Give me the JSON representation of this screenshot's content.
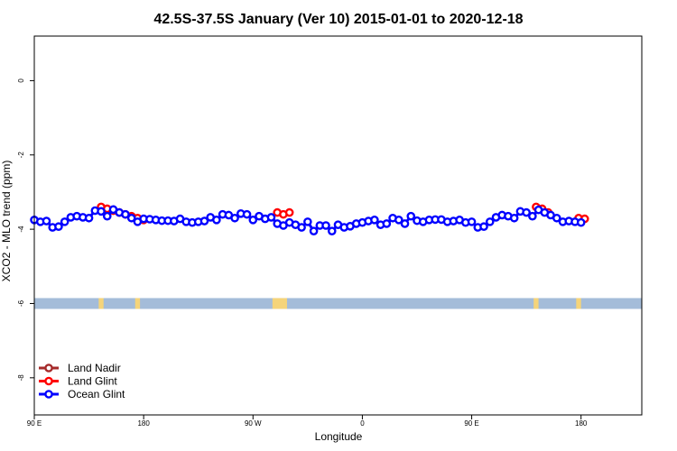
{
  "chart_data": {
    "type": "line",
    "title": "42.5S-37.5S January (Ver 10)   2015-01-01 to 2020-12-18",
    "xlabel": "Longitude",
    "ylabel": "XCO2 - MLO trend (ppm)",
    "xlim": [
      90,
      590
    ],
    "ylim": [
      -9,
      1.2
    ],
    "x_ticks": [
      {
        "value": 90,
        "label": "90 E"
      },
      {
        "value": 180,
        "label": "180"
      },
      {
        "value": 270,
        "label": "90 W"
      },
      {
        "value": 360,
        "label": "0"
      },
      {
        "value": 450,
        "label": "90 E"
      },
      {
        "value": 540,
        "label": "180"
      }
    ],
    "y_ticks": [
      {
        "value": 0,
        "label": "0"
      },
      {
        "value": -2,
        "label": "-2"
      },
      {
        "value": -4,
        "label": "-4"
      },
      {
        "value": -6,
        "label": "-6"
      },
      {
        "value": -8,
        "label": "-8"
      }
    ],
    "land_strip": {
      "y_value": -6,
      "ocean_color": "#a4bcd9",
      "land_color": "#f5d47a",
      "land_ranges": [
        [
          143,
          147
        ],
        [
          173,
          177
        ],
        [
          286,
          298
        ],
        [
          501,
          505
        ],
        [
          536,
          540
        ]
      ]
    },
    "legend": {
      "placement": "bottom-left",
      "entries": [
        {
          "label": "Land Nadir",
          "color": "#a52a2a"
        },
        {
          "label": "Land Glint",
          "color": "#ff0000"
        },
        {
          "label": "Ocean Glint",
          "color": "#0000ff"
        }
      ]
    },
    "series": [
      {
        "name": "Land Nadir",
        "color": "#a52a2a",
        "x": [],
        "y": []
      },
      {
        "name": "Land Glint",
        "color": "#ff0000",
        "segments": [
          {
            "x": [
              145,
              150,
              155,
              160,
              165,
              170,
              175,
              180
            ],
            "y": [
              -3.4,
              -3.45,
              -3.5,
              -3.55,
              -3.6,
              -3.65,
              -3.7,
              -3.75
            ]
          },
          {
            "x": [
              290,
              295,
              300
            ],
            "y": [
              -3.55,
              -3.6,
              -3.55
            ]
          },
          {
            "x": [
              503,
              508,
              513
            ],
            "y": [
              -3.4,
              -3.45,
              -3.55
            ]
          },
          {
            "x": [
              538,
              543
            ],
            "y": [
              -3.7,
              -3.72
            ]
          }
        ]
      },
      {
        "name": "Ocean Glint",
        "color": "#0000ff",
        "x": [
          90,
          95,
          100,
          105,
          110,
          115,
          120,
          125,
          130,
          135,
          140,
          145,
          150,
          155,
          160,
          165,
          170,
          175,
          180,
          185,
          190,
          195,
          200,
          205,
          210,
          215,
          220,
          225,
          230,
          235,
          240,
          245,
          250,
          255,
          260,
          265,
          270,
          275,
          280,
          285,
          290,
          295,
          300,
          305,
          310,
          315,
          320,
          325,
          330,
          335,
          340,
          345,
          350,
          355,
          360,
          365,
          370,
          375,
          380,
          385,
          390,
          395,
          400,
          405,
          410,
          415,
          420,
          425,
          430,
          435,
          440,
          445,
          450,
          455,
          460,
          465,
          470,
          475,
          480,
          485,
          490,
          495,
          500,
          505,
          510,
          515,
          520,
          525,
          530,
          535,
          540
        ],
        "y": [
          -3.75,
          -3.8,
          -3.78,
          -3.95,
          -3.93,
          -3.8,
          -3.68,
          -3.65,
          -3.68,
          -3.7,
          -3.5,
          -3.52,
          -3.65,
          -3.47,
          -3.55,
          -3.6,
          -3.7,
          -3.8,
          -3.72,
          -3.73,
          -3.75,
          -3.77,
          -3.77,
          -3.78,
          -3.72,
          -3.8,
          -3.82,
          -3.8,
          -3.78,
          -3.68,
          -3.75,
          -3.6,
          -3.62,
          -3.7,
          -3.58,
          -3.6,
          -3.75,
          -3.65,
          -3.72,
          -3.68,
          -3.85,
          -3.9,
          -3.82,
          -3.88,
          -3.95,
          -3.8,
          -4.05,
          -3.9,
          -3.9,
          -4.05,
          -3.88,
          -3.95,
          -3.92,
          -3.85,
          -3.82,
          -3.78,
          -3.75,
          -3.88,
          -3.85,
          -3.7,
          -3.75,
          -3.85,
          -3.65,
          -3.77,
          -3.8,
          -3.75,
          -3.74,
          -3.74,
          -3.8,
          -3.78,
          -3.75,
          -3.82,
          -3.8,
          -3.95,
          -3.93,
          -3.8,
          -3.68,
          -3.62,
          -3.65,
          -3.7,
          -3.52,
          -3.55,
          -3.65,
          -3.48,
          -3.55,
          -3.62,
          -3.7,
          -3.8,
          -3.78,
          -3.8,
          -3.82
        ]
      }
    ]
  }
}
